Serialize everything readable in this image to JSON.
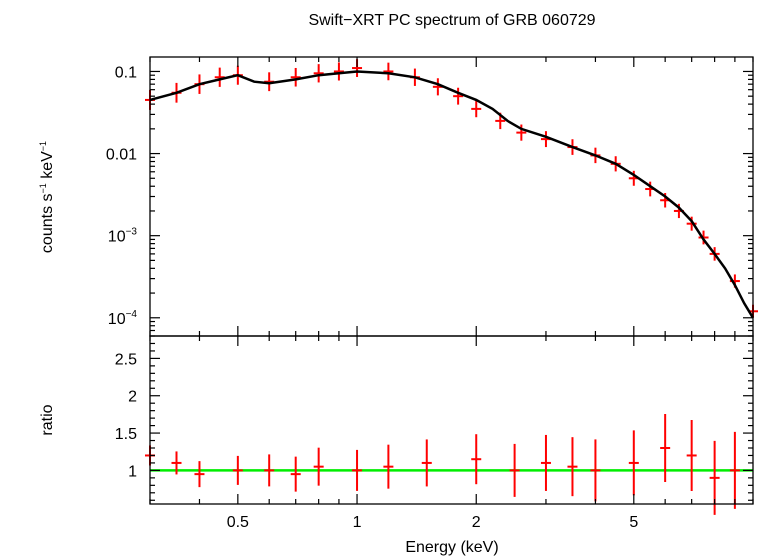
{
  "chart_data": [
    {
      "type": "scatter",
      "title": "Swift−XRT PC spectrum of GRB 060729",
      "xlabel": "Energy (keV)",
      "ylabel_main": "counts s",
      "ylabel_sup1": "−1",
      "ylabel_mid": " keV",
      "ylabel_sup2": "−1",
      "xscale": "log",
      "yscale": "log",
      "xlim": [
        0.3,
        10
      ],
      "ylim": [
        6e-05,
        0.15
      ],
      "x_ticks": [
        {
          "value": 0.5,
          "label": "0.5"
        },
        {
          "value": 1,
          "label": "1"
        },
        {
          "value": 2,
          "label": "2"
        },
        {
          "value": 5,
          "label": "5"
        }
      ],
      "y_ticks": [
        {
          "value": 0.1,
          "base": "0.1",
          "sup": ""
        },
        {
          "value": 0.01,
          "base": "0.01",
          "sup": ""
        },
        {
          "value": 0.001,
          "base": "10",
          "sup": "−3"
        },
        {
          "value": 0.0001,
          "base": "10",
          "sup": "−4"
        }
      ],
      "series": [
        {
          "name": "data",
          "color": "#ff0000",
          "points": [
            [
              0.3,
              0.045
            ],
            [
              0.35,
              0.055
            ],
            [
              0.4,
              0.07
            ],
            [
              0.45,
              0.085
            ],
            [
              0.5,
              0.09
            ],
            [
              0.6,
              0.075
            ],
            [
              0.7,
              0.085
            ],
            [
              0.8,
              0.095
            ],
            [
              0.9,
              0.1
            ],
            [
              1.0,
              0.11
            ],
            [
              1.2,
              0.1
            ],
            [
              1.4,
              0.085
            ],
            [
              1.6,
              0.065
            ],
            [
              1.8,
              0.05
            ],
            [
              2.0,
              0.035
            ],
            [
              2.3,
              0.025
            ],
            [
              2.6,
              0.018
            ],
            [
              3.0,
              0.015
            ],
            [
              3.5,
              0.012
            ],
            [
              4.0,
              0.0095
            ],
            [
              4.5,
              0.0075
            ],
            [
              5.0,
              0.005
            ],
            [
              5.5,
              0.0037
            ],
            [
              6.0,
              0.0027
            ],
            [
              6.5,
              0.002
            ],
            [
              7.0,
              0.0014
            ],
            [
              7.5,
              0.00095
            ],
            [
              8.0,
              0.0006
            ],
            [
              9.0,
              0.00028
            ],
            [
              10.0,
              0.00012
            ]
          ]
        },
        {
          "name": "model",
          "color": "#000000",
          "points": [
            [
              0.3,
              0.045
            ],
            [
              0.35,
              0.055
            ],
            [
              0.4,
              0.07
            ],
            [
              0.45,
              0.08
            ],
            [
              0.5,
              0.09
            ],
            [
              0.55,
              0.075
            ],
            [
              0.6,
              0.072
            ],
            [
              0.7,
              0.08
            ],
            [
              0.8,
              0.09
            ],
            [
              0.9,
              0.095
            ],
            [
              1.0,
              0.1
            ],
            [
              1.2,
              0.095
            ],
            [
              1.4,
              0.085
            ],
            [
              1.6,
              0.07
            ],
            [
              1.8,
              0.055
            ],
            [
              2.0,
              0.045
            ],
            [
              2.2,
              0.035
            ],
            [
              2.4,
              0.025
            ],
            [
              2.6,
              0.02
            ],
            [
              3.0,
              0.016
            ],
            [
              3.5,
              0.012
            ],
            [
              4.0,
              0.0095
            ],
            [
              4.5,
              0.0075
            ],
            [
              5.0,
              0.0055
            ],
            [
              5.5,
              0.004
            ],
            [
              6.0,
              0.003
            ],
            [
              6.5,
              0.0022
            ],
            [
              7.0,
              0.0015
            ],
            [
              7.5,
              0.0009
            ],
            [
              8.0,
              0.0006
            ],
            [
              8.5,
              0.0004
            ],
            [
              9.0,
              0.00025
            ],
            [
              9.5,
              0.00015
            ],
            [
              10.0,
              0.0001
            ]
          ]
        }
      ]
    },
    {
      "type": "scatter",
      "ylabel": "ratio",
      "xscale": "log",
      "yscale": "linear",
      "xlim": [
        0.3,
        10
      ],
      "ylim": [
        0.55,
        2.8
      ],
      "y_ticks": [
        {
          "value": 1,
          "label": "1"
        },
        {
          "value": 1.5,
          "label": "1.5"
        },
        {
          "value": 2,
          "label": "2"
        },
        {
          "value": 2.5,
          "label": "2.5"
        }
      ],
      "reference_line": {
        "value": 1,
        "color": "#00ee00"
      },
      "series": [
        {
          "name": "ratio",
          "color": "#ff0000",
          "points": [
            [
              0.3,
              1.2
            ],
            [
              0.35,
              1.1
            ],
            [
              0.4,
              0.95
            ],
            [
              0.5,
              1.0
            ],
            [
              0.6,
              1.0
            ],
            [
              0.7,
              0.95
            ],
            [
              0.8,
              1.05
            ],
            [
              1.0,
              1.0
            ],
            [
              1.2,
              1.05
            ],
            [
              1.5,
              1.1
            ],
            [
              2.0,
              1.15
            ],
            [
              2.5,
              1.0
            ],
            [
              3.0,
              1.1
            ],
            [
              3.5,
              1.05
            ],
            [
              4.0,
              1.0
            ],
            [
              5.0,
              1.1
            ],
            [
              6.0,
              1.3
            ],
            [
              7.0,
              1.2
            ],
            [
              8.0,
              0.9
            ],
            [
              9.0,
              1.0
            ]
          ]
        }
      ]
    }
  ]
}
